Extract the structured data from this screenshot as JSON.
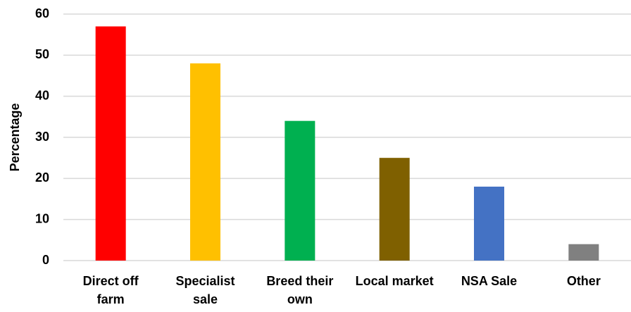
{
  "chart_data": {
    "type": "bar",
    "y_label": "Percentage",
    "categories": [
      "Direct off\nfarm",
      "Specialist\nsale",
      "Breed their\nown",
      "Local market",
      "NSA Sale",
      "Other"
    ],
    "values": [
      57,
      48,
      34,
      25,
      18,
      4
    ],
    "colors": [
      "#ff0000",
      "#ffc000",
      "#00b050",
      "#7f6000",
      "#4472c4",
      "#808080"
    ],
    "ylim": [
      0,
      60
    ],
    "yticks": [
      0,
      10,
      20,
      30,
      40,
      50,
      60
    ],
    "grid": true
  }
}
